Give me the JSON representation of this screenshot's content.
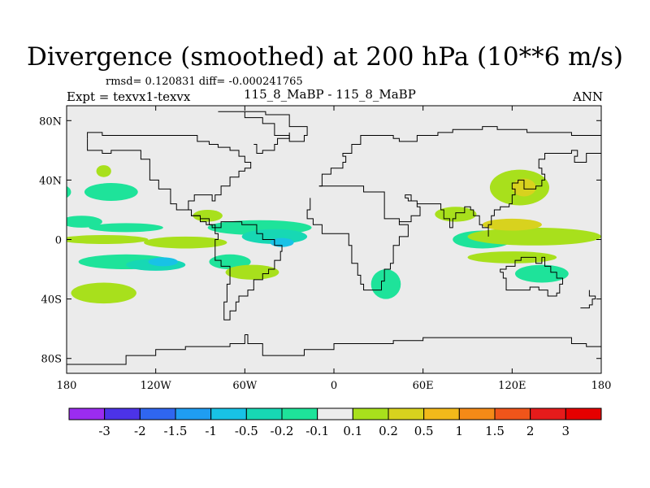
{
  "header": {
    "title": "Divergence (smoothed) at 200 hPa (10**6 m/s)",
    "stats": "rmsd= 0.120831 diff= -0.000241765",
    "experiment": "Expt = texvx1-texvx",
    "case_names": "115_8_MaBP - 115_8_MaBP",
    "period": "ANN"
  },
  "chart_data": {
    "type": "heatmap",
    "title": "Divergence (smoothed) at 200 hPa (10**6 m/s)",
    "xlabel": "",
    "ylabel": "",
    "xlim": [
      -180,
      180
    ],
    "ylim": [
      -90,
      90
    ],
    "x_ticks": [
      {
        "value": -180,
        "label": "180"
      },
      {
        "value": -120,
        "label": "120W"
      },
      {
        "value": -60,
        "label": "60W"
      },
      {
        "value": 0,
        "label": "0"
      },
      {
        "value": 60,
        "label": "60E"
      },
      {
        "value": 120,
        "label": "120E"
      },
      {
        "value": 180,
        "label": "180"
      }
    ],
    "y_ticks": [
      {
        "value": 80,
        "label": "80N"
      },
      {
        "value": 40,
        "label": "40N"
      },
      {
        "value": 0,
        "label": "0"
      },
      {
        "value": -40,
        "label": "40S"
      },
      {
        "value": -80,
        "label": "80S"
      }
    ],
    "background_level": "-0.1 to 0.1",
    "colorbar": {
      "levels": [
        "-3",
        "-2",
        "-1.5",
        "-1",
        "-0.5",
        "-0.2",
        "-0.1",
        "0.1",
        "0.2",
        "0.5",
        "1",
        "1.5",
        "2",
        "3"
      ],
      "colors": [
        "#9b2cf0",
        "#4c33e8",
        "#2f66f0",
        "#1f9df2",
        "#18c2e6",
        "#17d8b4",
        "#1ee39a",
        "#ececec",
        "#a8e01c",
        "#d8d21e",
        "#f2b91a",
        "#f58a17",
        "#f0551a",
        "#e61b1b",
        "#e60000"
      ]
    },
    "regions": [
      {
        "lon": -170,
        "lat": 12,
        "rx": 14,
        "ry": 4,
        "value": -0.15
      },
      {
        "lon": -140,
        "lat": 8,
        "rx": 25,
        "ry": 3,
        "value": -0.15
      },
      {
        "lon": -50,
        "lat": 8,
        "rx": 35,
        "ry": 5,
        "value": -0.15
      },
      {
        "lon": -40,
        "lat": 2,
        "rx": 22,
        "ry": 5,
        "value": -0.3
      },
      {
        "lon": -35,
        "lat": -2,
        "rx": 8,
        "ry": 3,
        "value": -0.6
      },
      {
        "lon": -155,
        "lat": 0,
        "rx": 30,
        "ry": 3,
        "value": 0.15
      },
      {
        "lon": -100,
        "lat": -2,
        "rx": 28,
        "ry": 4,
        "value": 0.15
      },
      {
        "lon": -140,
        "lat": -15,
        "rx": 32,
        "ry": 5,
        "value": -0.15
      },
      {
        "lon": -120,
        "lat": -17,
        "rx": 20,
        "ry": 4,
        "value": -0.3
      },
      {
        "lon": -115,
        "lat": -15,
        "rx": 10,
        "ry": 3,
        "value": -0.6
      },
      {
        "lon": -70,
        "lat": -15,
        "rx": 14,
        "ry": 5,
        "value": -0.15
      },
      {
        "lon": -155,
        "lat": -36,
        "rx": 22,
        "ry": 7,
        "value": 0.15
      },
      {
        "lon": -55,
        "lat": -22,
        "rx": 18,
        "ry": 5,
        "value": 0.15
      },
      {
        "lon": 35,
        "lat": -30,
        "rx": 10,
        "ry": 10,
        "value": -0.15
      },
      {
        "lon": 100,
        "lat": 0,
        "rx": 20,
        "ry": 6,
        "value": -0.15
      },
      {
        "lon": 135,
        "lat": 2,
        "rx": 45,
        "ry": 6,
        "value": 0.15
      },
      {
        "lon": 120,
        "lat": 10,
        "rx": 20,
        "ry": 4,
        "value": 0.3
      },
      {
        "lon": 120,
        "lat": -12,
        "rx": 30,
        "ry": 4,
        "value": 0.15
      },
      {
        "lon": 140,
        "lat": -23,
        "rx": 18,
        "ry": 6,
        "value": -0.15
      },
      {
        "lon": 125,
        "lat": 35,
        "rx": 20,
        "ry": 12,
        "value": 0.15
      },
      {
        "lon": 128,
        "lat": 35,
        "rx": 8,
        "ry": 6,
        "value": 0.3
      },
      {
        "lon": 82,
        "lat": 17,
        "rx": 14,
        "ry": 5,
        "value": 0.15
      },
      {
        "lon": -85,
        "lat": 16,
        "rx": 10,
        "ry": 4,
        "value": 0.15
      },
      {
        "lon": -150,
        "lat": 32,
        "rx": 18,
        "ry": 6,
        "value": -0.15
      },
      {
        "lon": -185,
        "lat": 32,
        "rx": 8,
        "ry": 5,
        "value": -0.15
      },
      {
        "lon": -155,
        "lat": 46,
        "rx": 5,
        "ry": 4,
        "value": 0.15
      }
    ]
  }
}
